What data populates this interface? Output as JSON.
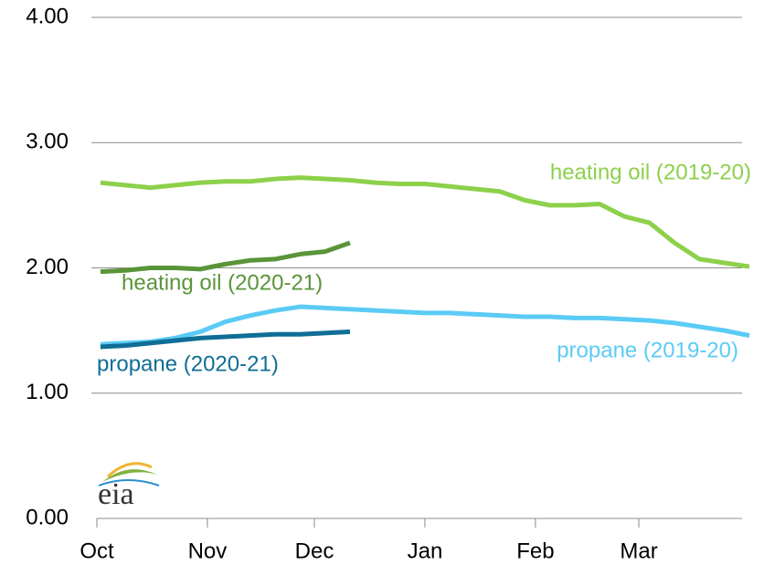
{
  "chart_data": {
    "type": "line",
    "logo": "eia",
    "x": [
      1,
      8,
      15,
      22,
      29,
      36,
      43,
      50,
      57,
      64,
      71,
      78,
      85,
      92,
      99,
      106,
      113,
      120,
      127,
      134,
      141,
      148,
      155,
      162,
      169,
      176,
      183
    ],
    "xlim": [
      0,
      183
    ],
    "xticks": [
      {
        "value": 0,
        "label": "Oct"
      },
      {
        "value": 31,
        "label": "Nov"
      },
      {
        "value": 61,
        "label": "Dec"
      },
      {
        "value": 92,
        "label": "Jan"
      },
      {
        "value": 123,
        "label": "Feb"
      },
      {
        "value": 152,
        "label": "Mar"
      }
    ],
    "ylim": [
      0,
      4
    ],
    "yticks": [
      {
        "value": 0,
        "label": "0.00"
      },
      {
        "value": 1,
        "label": "1.00"
      },
      {
        "value": 2,
        "label": "2.00"
      },
      {
        "value": 3,
        "label": "3.00"
      },
      {
        "value": 4,
        "label": "4.00"
      }
    ],
    "grid": true,
    "series": [
      {
        "name": "heating oil (2019-20)",
        "color": "#8dd04a",
        "values": [
          2.68,
          2.66,
          2.64,
          2.66,
          2.68,
          2.69,
          2.69,
          2.71,
          2.72,
          2.71,
          2.7,
          2.68,
          2.67,
          2.67,
          2.65,
          2.63,
          2.61,
          2.54,
          2.5,
          2.5,
          2.51,
          2.41,
          2.36,
          2.2,
          2.07,
          2.04,
          2.01
        ]
      },
      {
        "name": "heating oil (2020-21)",
        "color": "#5a9438",
        "values": [
          1.97,
          1.98,
          2.0,
          2.0,
          1.99,
          2.03,
          2.06,
          2.07,
          2.11,
          2.13,
          2.2,
          null,
          null,
          null,
          null,
          null,
          null,
          null,
          null,
          null,
          null,
          null,
          null,
          null,
          null,
          null,
          null
        ]
      },
      {
        "name": "propane (2019-20)",
        "color": "#5bcbf5",
        "values": [
          1.39,
          1.4,
          1.41,
          1.44,
          1.49,
          1.57,
          1.62,
          1.66,
          1.69,
          1.68,
          1.67,
          1.66,
          1.65,
          1.64,
          1.64,
          1.63,
          1.62,
          1.61,
          1.61,
          1.6,
          1.6,
          1.59,
          1.58,
          1.56,
          1.53,
          1.5,
          1.46
        ]
      },
      {
        "name": "propane (2020-21)",
        "color": "#0f6e95",
        "values": [
          1.37,
          1.38,
          1.4,
          1.42,
          1.44,
          1.45,
          1.46,
          1.47,
          1.47,
          1.48,
          1.49,
          null,
          null,
          null,
          null,
          null,
          null,
          null,
          null,
          null,
          null,
          null,
          null,
          null,
          null,
          null,
          null
        ]
      }
    ]
  }
}
